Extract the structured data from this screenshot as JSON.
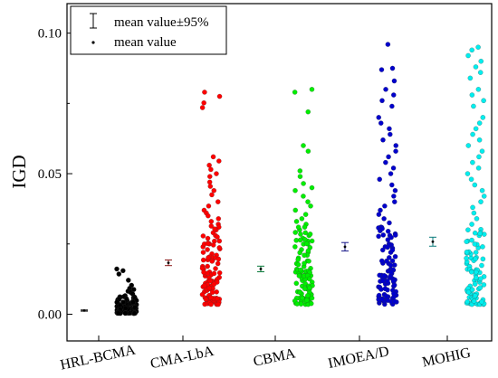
{
  "chart_data": {
    "type": "scatter",
    "title": "",
    "xlabel": "",
    "ylabel": "IGD",
    "ylim": [
      -0.0095,
      0.1105
    ],
    "yticks": [
      "0.00",
      "0.05",
      "0.10"
    ],
    "ytick_values": [
      0,
      0.05,
      0.1
    ],
    "categories": [
      "HRL-BCMA",
      "CMA-LbA",
      "CBMA",
      "IMOEA/D",
      "MOHIG"
    ],
    "legend": {
      "position": "top-left",
      "items": [
        {
          "label": "mean value±95%",
          "marker": "errorbar"
        },
        {
          "label": "mean value",
          "marker": "dot"
        }
      ]
    },
    "series": [
      {
        "category": "HRL-BCMA",
        "color": "#000000",
        "mean": 0.0013,
        "ci": [
          0.0011,
          0.0015
        ],
        "min": 0.0003,
        "max": 0.0161,
        "points": [
          0.0161,
          0.0155,
          0.0143,
          0.0121,
          0.0103,
          0.0092,
          0.0088,
          0.0082,
          0.0078,
          0.0072,
          0.0066,
          0.0062,
          0.0058,
          0.0054,
          0.0051,
          0.0048,
          0.0045,
          0.0042,
          0.004,
          0.0038,
          0.0036,
          0.0034,
          0.0032,
          0.003,
          0.0028,
          0.0026,
          0.0024,
          0.0022,
          0.0021,
          0.002,
          0.0018,
          0.0017,
          0.0016,
          0.0015,
          0.0014,
          0.0013,
          0.0012,
          0.0011,
          0.001,
          0.0009,
          0.0008,
          0.0007,
          0.0006,
          0.0005,
          0.0004,
          0.0003
        ]
      },
      {
        "category": "CMA-LbA",
        "color": "#ff0000",
        "mean": 0.0183,
        "ci": [
          0.0173,
          0.0193
        ],
        "min": 0.0035,
        "max": 0.079,
        "points": [
          0.079,
          0.0775,
          0.0752,
          0.0735,
          0.056,
          0.0545,
          0.053,
          0.0515,
          0.05,
          0.049,
          0.047,
          0.0455,
          0.044,
          0.0425,
          0.04,
          0.0385,
          0.037,
          0.036,
          0.035,
          0.034,
          0.033,
          0.032,
          0.031,
          0.03,
          0.029,
          0.028,
          0.027,
          0.026,
          0.025,
          0.024,
          0.023,
          0.022,
          0.021,
          0.02,
          0.019,
          0.018,
          0.017,
          0.016,
          0.015,
          0.014,
          0.013,
          0.012,
          0.011,
          0.01,
          0.009,
          0.008,
          0.007,
          0.006,
          0.005,
          0.004
        ]
      },
      {
        "category": "CBMA",
        "color": "#00ee00",
        "mean": 0.0161,
        "ci": [
          0.0151,
          0.0171
        ],
        "min": 0.0035,
        "max": 0.08,
        "points": [
          0.08,
          0.079,
          0.072,
          0.06,
          0.058,
          0.051,
          0.049,
          0.0465,
          0.045,
          0.044,
          0.042,
          0.04,
          0.0385,
          0.037,
          0.0355,
          0.034,
          0.033,
          0.032,
          0.031,
          0.03,
          0.029,
          0.028,
          0.027,
          0.026,
          0.025,
          0.024,
          0.023,
          0.022,
          0.021,
          0.02,
          0.019,
          0.018,
          0.017,
          0.016,
          0.015,
          0.014,
          0.013,
          0.012,
          0.011,
          0.01,
          0.009,
          0.008,
          0.007,
          0.006,
          0.005,
          0.004
        ]
      },
      {
        "category": "IMOEA/D",
        "color": "#0000cc",
        "mean": 0.024,
        "ci": [
          0.0225,
          0.0255
        ],
        "min": 0.0035,
        "max": 0.096,
        "points": [
          0.096,
          0.0875,
          0.087,
          0.083,
          0.08,
          0.078,
          0.076,
          0.074,
          0.07,
          0.068,
          0.066,
          0.064,
          0.062,
          0.06,
          0.058,
          0.056,
          0.054,
          0.052,
          0.05,
          0.048,
          0.046,
          0.044,
          0.042,
          0.04,
          0.0385,
          0.037,
          0.0355,
          0.034,
          0.0325,
          0.031,
          0.0295,
          0.028,
          0.0265,
          0.025,
          0.0235,
          0.022,
          0.0205,
          0.019,
          0.0175,
          0.016,
          0.0145,
          0.013,
          0.0115,
          0.01,
          0.0085,
          0.007,
          0.0055,
          0.004
        ]
      },
      {
        "category": "MOHIG",
        "color": "#00eeee",
        "mean": 0.0258,
        "ci": [
          0.0242,
          0.0274
        ],
        "min": 0.0035,
        "max": 0.095,
        "points": [
          0.095,
          0.094,
          0.092,
          0.09,
          0.088,
          0.086,
          0.084,
          0.08,
          0.078,
          0.076,
          0.074,
          0.07,
          0.068,
          0.066,
          0.064,
          0.062,
          0.06,
          0.058,
          0.056,
          0.054,
          0.052,
          0.05,
          0.048,
          0.046,
          0.044,
          0.042,
          0.04,
          0.038,
          0.036,
          0.034,
          0.032,
          0.03,
          0.028,
          0.026,
          0.024,
          0.022,
          0.02,
          0.018,
          0.016,
          0.014,
          0.012,
          0.01,
          0.008,
          0.006,
          0.004
        ]
      }
    ]
  }
}
